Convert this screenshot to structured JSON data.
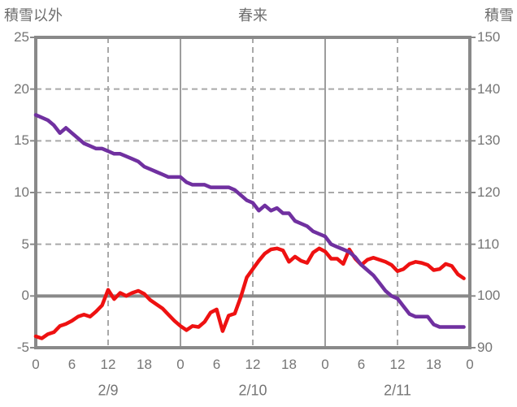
{
  "chart_data": {
    "type": "line",
    "title": "春来",
    "left_axis": {
      "label": "積雪以外",
      "min": -5,
      "max": 25,
      "ticks": [
        25,
        20,
        15,
        10,
        5,
        0,
        -5
      ],
      "dashed_gridline_values": [
        20,
        15,
        10,
        5
      ],
      "solid_gridline_values": [
        0
      ]
    },
    "right_axis": {
      "label": "積雪",
      "min": 90,
      "max": 150,
      "ticks": [
        150,
        140,
        130,
        120,
        110,
        100,
        90
      ]
    },
    "x_axis": {
      "hours_total": 72,
      "tick_step_hours": 6,
      "hour_ticks": [
        "0",
        "6",
        "12",
        "18",
        "0",
        "6",
        "12",
        "18",
        "0",
        "6",
        "12",
        "18",
        "0"
      ],
      "solid_gridline_hours": [
        24,
        48
      ],
      "dashed_gridline_hours": [
        12,
        36,
        60
      ],
      "day_labels": [
        {
          "label": "2/9",
          "hour": 12
        },
        {
          "label": "2/10",
          "hour": 36
        },
        {
          "label": "2/11",
          "hour": 60
        }
      ]
    },
    "grid": {
      "on": true,
      "legend": "none",
      "background": "#ffffff"
    },
    "colors": {
      "border": "#898989",
      "zero_line": "#898989",
      "solid_day_line": "#9d9d9d",
      "dashed_grid": "#a9a9a9",
      "text": "#757575",
      "series_red": "#ee1111",
      "series_purple": "#7030a0"
    },
    "series": [
      {
        "name": "積雪以外",
        "axis": "left",
        "color": "#ee1111",
        "values": [
          -3.9,
          -4.1,
          -3.7,
          -3.5,
          -2.9,
          -2.7,
          -2.4,
          -2.0,
          -1.8,
          -2.0,
          -1.5,
          -0.9,
          0.6,
          -0.3,
          0.3,
          0.0,
          0.3,
          0.5,
          0.2,
          -0.4,
          -0.8,
          -1.2,
          -1.8,
          -2.4,
          -2.9,
          -3.3,
          -2.9,
          -3.0,
          -2.5,
          -1.6,
          -1.3,
          -3.4,
          -1.9,
          -1.7,
          -0.1,
          1.8,
          2.6,
          3.4,
          4.1,
          4.5,
          4.6,
          4.4,
          3.3,
          3.8,
          3.4,
          3.2,
          4.2,
          4.6,
          4.3,
          3.6,
          3.6,
          3.1,
          4.5,
          3.6,
          3.0,
          3.5,
          3.7,
          3.5,
          3.3,
          3.0,
          2.4,
          2.6,
          3.1,
          3.3,
          3.2,
          3.0,
          2.5,
          2.6,
          3.1,
          2.9,
          2.1,
          1.7
        ]
      },
      {
        "name": "積雪",
        "axis": "right",
        "color": "#7030a0",
        "values": [
          135,
          134.5,
          134,
          133,
          131.5,
          132.5,
          131.5,
          130.5,
          129.5,
          129,
          128.5,
          128.5,
          128,
          127.5,
          127.5,
          127,
          126.5,
          126,
          125,
          124.5,
          124,
          123.5,
          123,
          123,
          123,
          122,
          121.5,
          121.5,
          121.5,
          121,
          121,
          121,
          121,
          120.5,
          119.5,
          118.5,
          118,
          116.5,
          117.5,
          116.5,
          117,
          116,
          116,
          114.5,
          114,
          113.5,
          112.5,
          112,
          111.5,
          110,
          109.5,
          109,
          108.5,
          107.5,
          106,
          105,
          104,
          102.5,
          101,
          100,
          99.5,
          98,
          96.5,
          96,
          96,
          96,
          94.5,
          94,
          94,
          94,
          94,
          94
        ]
      }
    ]
  }
}
